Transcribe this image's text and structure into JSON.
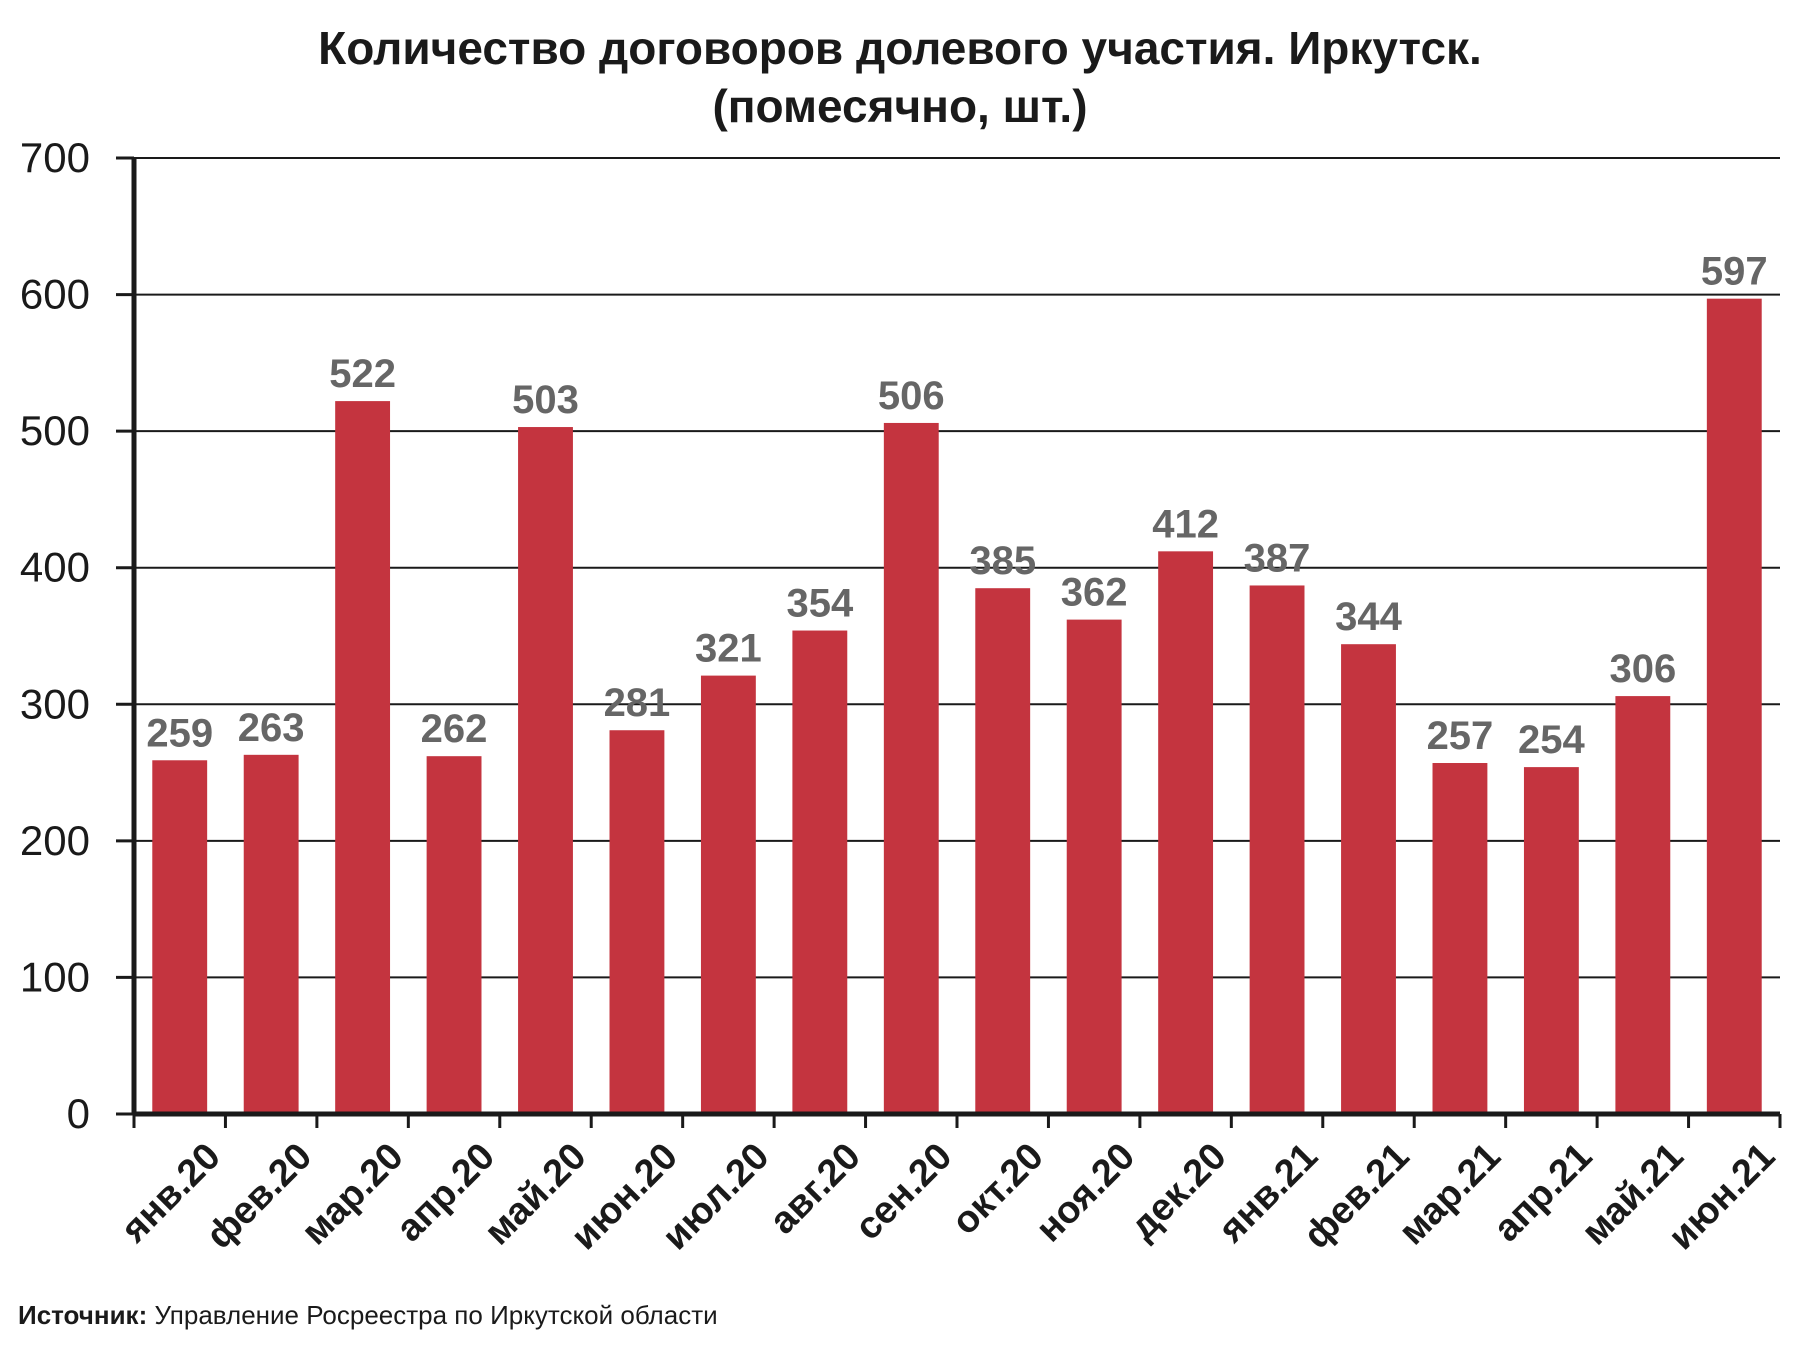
{
  "chart_data": {
    "type": "bar",
    "title": "Количество договоров долевого участия. Иркутск.",
    "subtitle": "(помесячно, шт.)",
    "categories": [
      "янв.20",
      "фев.20",
      "мар.20",
      "апр.20",
      "май.20",
      "июн.20",
      "июл.20",
      "авг.20",
      "сен.20",
      "окт.20",
      "ноя.20",
      "дек.20",
      "янв.21",
      "фев.21",
      "мар.21",
      "апр.21",
      "май.21",
      "июн.21"
    ],
    "values": [
      259,
      263,
      522,
      262,
      503,
      281,
      321,
      354,
      506,
      385,
      362,
      412,
      387,
      344,
      257,
      254,
      306,
      597
    ],
    "ylim": [
      0,
      700
    ],
    "yticks": [
      0,
      100,
      200,
      300,
      400,
      500,
      600,
      700
    ],
    "grid": true,
    "data_labels": true,
    "xlabel": "",
    "ylabel": ""
  },
  "colors": {
    "bar": "#c4343f",
    "data_label": "#666666",
    "axis": "#1a1a1a",
    "grid": "#1a1a1a"
  },
  "source": {
    "label": "Источник:",
    "text": " Управление Росреестра по Иркутской области"
  }
}
